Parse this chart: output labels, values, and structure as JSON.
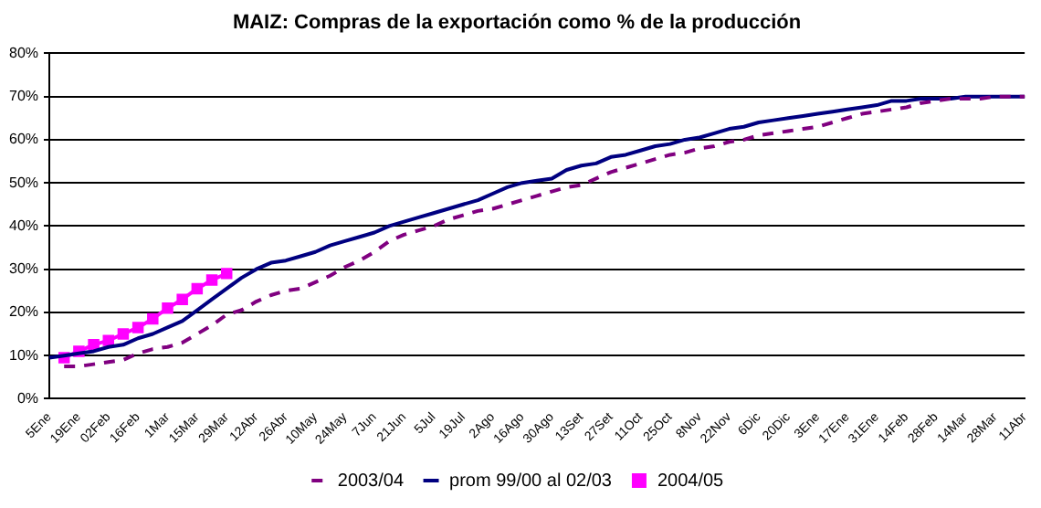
{
  "chart_data": {
    "type": "line",
    "title": "MAIZ: Compras de la exportación como % de la producción",
    "categories": [
      "5Ene",
      null,
      "19Ene",
      null,
      "02Feb",
      null,
      "16Feb",
      null,
      "1Mar",
      null,
      "15Mar",
      null,
      "29Mar",
      null,
      "12Abr",
      null,
      "26Abr",
      null,
      "10May",
      null,
      "24May",
      null,
      "7Jun",
      null,
      "21Jun",
      null,
      "5Jul",
      null,
      "19Jul",
      null,
      "2Ago",
      null,
      "16Ago",
      null,
      "30Ago",
      null,
      "13Set",
      null,
      "27Set",
      null,
      "11Oct",
      null,
      "25Oct",
      null,
      "8Nov",
      null,
      "22Nov",
      null,
      "6Dic",
      null,
      "20Dic",
      null,
      "3Ene",
      null,
      "17Ene",
      null,
      "31Ene",
      null,
      "14Feb",
      null,
      "28Feb",
      null,
      "14Mar",
      null,
      "28Mar",
      null,
      "11Abr"
    ],
    "series": [
      {
        "name": "2003/04",
        "color": "#800080",
        "line_style": "dashed",
        "marker": "none",
        "values": [
          null,
          7.5,
          7.5,
          8,
          8.5,
          9,
          10.5,
          11.5,
          12,
          13,
          15,
          17,
          19.5,
          20.5,
          22.5,
          24,
          25,
          25.5,
          27,
          28.5,
          30.5,
          32,
          34,
          36.5,
          38,
          39,
          40,
          41.5,
          42.5,
          43.5,
          44,
          45,
          46,
          47,
          48,
          49,
          49.5,
          51,
          52.5,
          53.5,
          54.5,
          55.5,
          56.5,
          57,
          58,
          58.5,
          59.5,
          60,
          61,
          61.5,
          62,
          62.5,
          63,
          64,
          65,
          66,
          66.5,
          67,
          67.5,
          68.5,
          69,
          69.5,
          69.5,
          69.5,
          70,
          70,
          70
        ]
      },
      {
        "name": "prom 99/00 al 02/03",
        "color": "#000080",
        "line_style": "solid",
        "marker": "none",
        "values": [
          9.5,
          10,
          10.5,
          11,
          12,
          12.5,
          14,
          15,
          16.5,
          18,
          20.5,
          23,
          25.5,
          28,
          30,
          31.5,
          32,
          33,
          34,
          35.5,
          36.5,
          37.5,
          38.5,
          40,
          41,
          42,
          43,
          44,
          45,
          46,
          47.5,
          49,
          50,
          50.5,
          51,
          53,
          54,
          54.5,
          56,
          56.5,
          57.5,
          58.5,
          59,
          60,
          60.5,
          61.5,
          62.5,
          63,
          64,
          64.5,
          65,
          65.5,
          66,
          66.5,
          67,
          67.5,
          68,
          69,
          69,
          69.5,
          69.5,
          69.5,
          70,
          70,
          70,
          70,
          70
        ]
      },
      {
        "name": "2004/05",
        "color": "#ff00ff",
        "line_style": "solid",
        "marker": "square",
        "values": [
          null,
          9.5,
          11,
          12.5,
          13.5,
          15,
          16.5,
          18.5,
          21,
          23,
          25.5,
          27.5,
          29,
          null,
          null,
          null,
          null,
          null,
          null,
          null,
          null,
          null,
          null,
          null,
          null,
          null,
          null,
          null,
          null,
          null,
          null,
          null,
          null,
          null,
          null,
          null,
          null,
          null,
          null,
          null,
          null,
          null,
          null,
          null,
          null,
          null,
          null,
          null,
          null,
          null,
          null,
          null,
          null,
          null,
          null,
          null,
          null,
          null,
          null,
          null,
          null,
          null,
          null,
          null,
          null,
          null,
          null
        ]
      }
    ],
    "ylim": [
      0,
      80
    ],
    "yticks": [
      {
        "value": 0,
        "label": "0%"
      },
      {
        "value": 10,
        "label": "10%"
      },
      {
        "value": 20,
        "label": "20%"
      },
      {
        "value": 30,
        "label": "30%"
      },
      {
        "value": 40,
        "label": "40%"
      },
      {
        "value": 50,
        "label": "50%"
      },
      {
        "value": 60,
        "label": "60%"
      },
      {
        "value": 70,
        "label": "70%"
      },
      {
        "value": 80,
        "label": "80%"
      }
    ],
    "grid": "y",
    "legend": "bottom"
  }
}
